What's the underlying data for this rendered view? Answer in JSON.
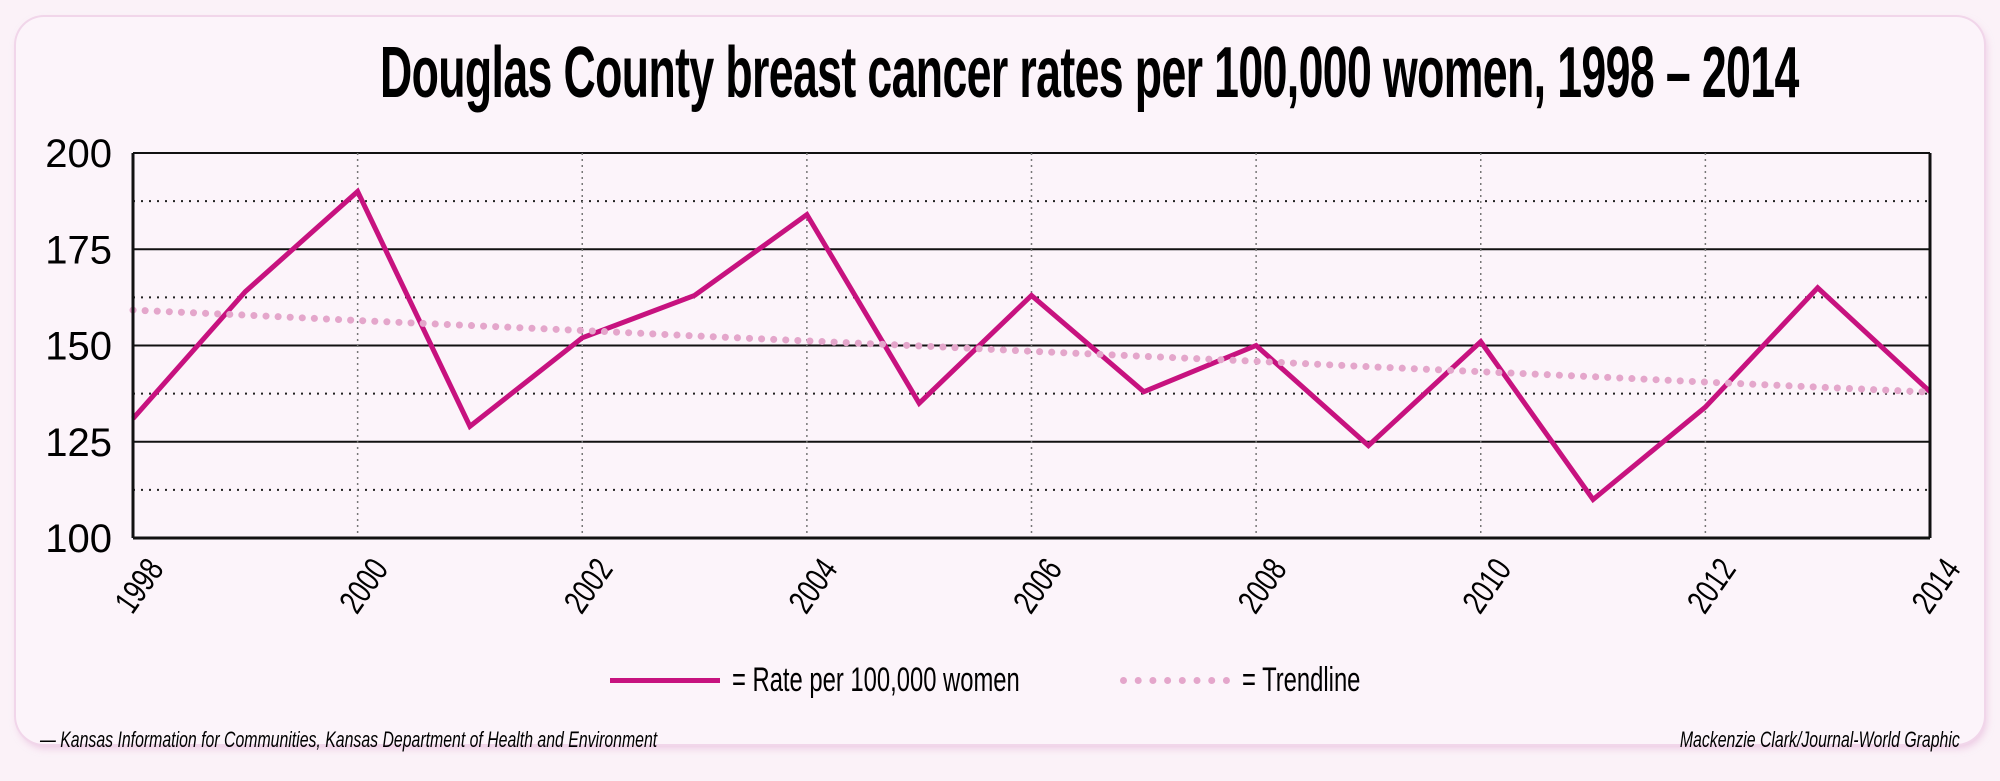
{
  "chart_data": {
    "type": "line",
    "title": "Douglas County breast cancer rates per 100,000 women, 1998 – 2014",
    "xlabel": "",
    "ylabel": "",
    "x": [
      1998,
      1999,
      2000,
      2001,
      2002,
      2003,
      2004,
      2005,
      2006,
      2007,
      2008,
      2009,
      2010,
      2011,
      2012,
      2013,
      2014
    ],
    "xlim": [
      1998,
      2014
    ],
    "ylim": [
      100,
      200
    ],
    "x_ticks": [
      "1998",
      "2000",
      "2002",
      "2004",
      "2006",
      "2008",
      "2010",
      "2012",
      "2014"
    ],
    "y_ticks": [
      "100",
      "125",
      "150",
      "175",
      "200"
    ],
    "grid": true,
    "series": [
      {
        "name": "= Rate per 100,000 women",
        "style": "solid",
        "color": "#c7127f",
        "values": [
          131,
          164,
          190,
          129,
          152,
          163,
          184,
          135,
          163,
          138,
          150,
          124,
          151,
          110,
          134,
          165,
          138
        ]
      },
      {
        "name": "= Trendline",
        "style": "dotted",
        "color": "#e4a6cb",
        "values": [
          159.2,
          157.9,
          156.5,
          155.2,
          153.9,
          152.5,
          151.2,
          149.9,
          148.5,
          147.2,
          145.9,
          144.5,
          143.2,
          141.9,
          140.5,
          139.2,
          137.9
        ]
      }
    ],
    "legend_position": "bottom-center"
  },
  "footer": {
    "source": "— Kansas Information for Communities, Kansas Department of Health and Environment",
    "credit": "Mackenzie Clark/Journal-World Graphic"
  }
}
